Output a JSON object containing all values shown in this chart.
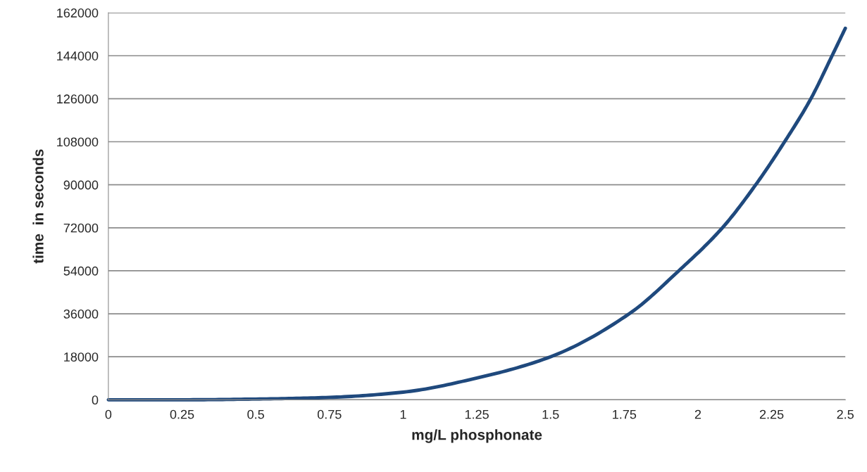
{
  "chart_data": {
    "type": "line",
    "xlabel": "mg/L phosphonate",
    "ylabel": "time  in seconds",
    "series": [
      {
        "color": "#1f497d",
        "x": [
          0,
          0.25,
          0.5,
          0.75,
          1,
          1.25,
          1.5,
          1.767,
          1.935,
          2.083,
          2.196,
          2.294,
          2.383,
          2.455,
          2.5
        ],
        "values": [
          0,
          0,
          300,
          1000,
          3200,
          9100,
          18000,
          36000,
          54000,
          72000,
          90000,
          108000,
          126000,
          144000,
          155500
        ]
      }
    ],
    "xlim": [
      0,
      2.5
    ],
    "xticks": [
      0,
      0.25,
      0.5,
      0.75,
      1,
      1.25,
      1.5,
      1.75,
      2,
      2.25,
      2.5
    ],
    "ylim": [
      0,
      162000
    ],
    "yticks": [
      0,
      18000,
      36000,
      54000,
      72000,
      90000,
      108000,
      126000,
      144000,
      162000
    ],
    "grid": "y",
    "marker": "none",
    "line_style": "solid"
  }
}
